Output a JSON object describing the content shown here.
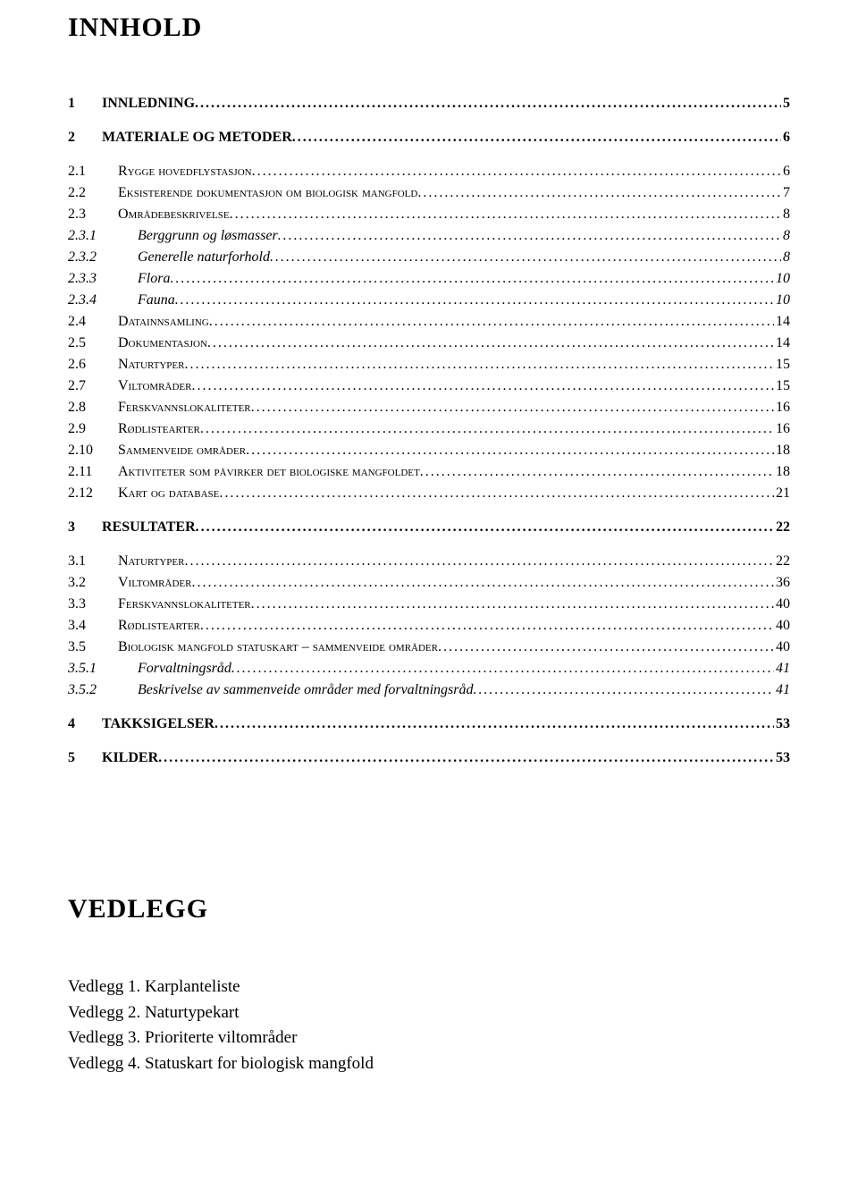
{
  "title_main": "INNHOLD",
  "toc": [
    {
      "level": 0,
      "num": "1",
      "text": "INNLEDNING",
      "page": "5",
      "bold": true,
      "spaced": false
    },
    {
      "level": 0,
      "num": "2",
      "text": "MATERIALE OG METODER",
      "page": "6",
      "bold": true,
      "spaced": true
    },
    {
      "level": 1,
      "num": "2.1",
      "text": "RYGGE HOVEDFLYSTASJON",
      "page": "6",
      "smallcaps": true,
      "spaced": true
    },
    {
      "level": 1,
      "num": "2.2",
      "text": "EKSISTERENDE DOKUMENTASJON OM BIOLOGISK MANGFOLD",
      "page": "7",
      "smallcaps": true
    },
    {
      "level": 1,
      "num": "2.3",
      "text": "OMRÅDEBESKRIVELSE",
      "page": "8",
      "smallcaps": true
    },
    {
      "level": 2,
      "num": "2.3.1",
      "text": "Berggrunn og løsmasser",
      "page": "8",
      "italic": true
    },
    {
      "level": 2,
      "num": "2.3.2",
      "text": "Generelle naturforhold",
      "page": "8",
      "italic": true
    },
    {
      "level": 2,
      "num": "2.3.3",
      "text": "Flora",
      "page": "10",
      "italic": true
    },
    {
      "level": 2,
      "num": "2.3.4",
      "text": "Fauna",
      "page": "10",
      "italic": true
    },
    {
      "level": 1,
      "num": "2.4",
      "text": "DATAINNSAMLING",
      "page": "14",
      "smallcaps": true
    },
    {
      "level": 1,
      "num": "2.5",
      "text": "DOKUMENTASJON",
      "page": "14",
      "smallcaps": true
    },
    {
      "level": 1,
      "num": "2.6",
      "text": "NATURTYPER",
      "page": "15",
      "smallcaps": true
    },
    {
      "level": 1,
      "num": "2.7",
      "text": "VILTOMRÅDER",
      "page": "15",
      "smallcaps": true
    },
    {
      "level": 1,
      "num": "2.8",
      "text": "FERSKVANNSLOKALITETER",
      "page": "16",
      "smallcaps": true
    },
    {
      "level": 1,
      "num": "2.9",
      "text": "RØDLISTEARTER",
      "page": "16",
      "smallcaps": true
    },
    {
      "level": 1,
      "num": "2.10",
      "text": "SAMMENVEIDE OMRÅDER",
      "page": "18",
      "smallcaps": true
    },
    {
      "level": 1,
      "num": "2.11",
      "text": "AKTIVITETER SOM PÅVIRKER DET BIOLOGISKE MANGFOLDET",
      "page": "18",
      "smallcaps": true
    },
    {
      "level": 1,
      "num": "2.12",
      "text": "KART OG DATABASE",
      "page": "21",
      "smallcaps": true
    },
    {
      "level": 0,
      "num": "3",
      "text": "RESULTATER",
      "page": "22",
      "bold": true,
      "spaced": true
    },
    {
      "level": 1,
      "num": "3.1",
      "text": "NATURTYPER",
      "page": "22",
      "smallcaps": true,
      "spaced": true
    },
    {
      "level": 1,
      "num": "3.2",
      "text": "VILTOMRÅDER",
      "page": "36",
      "smallcaps": true
    },
    {
      "level": 1,
      "num": "3.3",
      "text": "FERSKVANNSLOKALITETER",
      "page": "40",
      "smallcaps": true
    },
    {
      "level": 1,
      "num": "3.4",
      "text": "RØDLISTEARTER",
      "page": "40",
      "smallcaps": true
    },
    {
      "level": 1,
      "num": "3.5",
      "text": "BIOLOGISK MANGFOLD STATUSKART – SAMMENVEIDE OMRÅDER",
      "page": "40",
      "smallcaps": true
    },
    {
      "level": 2,
      "num": "3.5.1",
      "text": "Forvaltningsråd",
      "page": "41",
      "italic": true
    },
    {
      "level": 2,
      "num": "3.5.2",
      "text": "Beskrivelse av sammenveide områder med forvaltningsråd",
      "page": "41",
      "italic": true
    },
    {
      "level": 0,
      "num": "4",
      "text": "TAKKSIGELSER",
      "page": "53",
      "bold": true,
      "spaced": true
    },
    {
      "level": 0,
      "num": "5",
      "text": "KILDER",
      "page": "53",
      "bold": true,
      "spaced": true
    }
  ],
  "vedlegg_title": "VEDLEGG",
  "vedlegg": [
    "Vedlegg 1. Karplanteliste",
    "Vedlegg 2. Naturtypekart",
    "Vedlegg 3. Prioriterte viltområder",
    "Vedlegg 4. Statuskart for biologisk mangfold"
  ]
}
